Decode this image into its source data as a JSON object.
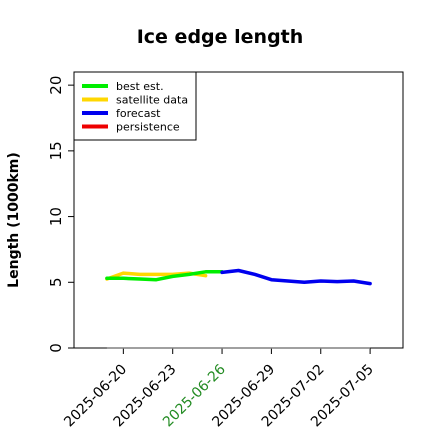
{
  "chart_data": {
    "type": "line",
    "title": "Ice edge length",
    "xlabel": "",
    "ylabel": "Length (1000km)",
    "ylim": [
      0,
      21
    ],
    "xlim": [
      "2025-06-17",
      "2025-07-07"
    ],
    "yticks": [
      0,
      5,
      10,
      15,
      20
    ],
    "xticks": [
      "2025-06-20",
      "2025-06-23",
      "2025-06-26",
      "2025-06-29",
      "2025-07-02",
      "2025-07-05"
    ],
    "highlighted_xtick": "2025-06-26",
    "highlight_color": "#228b22",
    "legend_position": "top-left",
    "grid": false,
    "series": [
      {
        "name": "best est.",
        "color": "#00ee00",
        "x": [
          "2025-06-19",
          "2025-06-20",
          "2025-06-21",
          "2025-06-22",
          "2025-06-23",
          "2025-06-24",
          "2025-06-25",
          "2025-06-26"
        ],
        "y": [
          5.3,
          5.3,
          5.25,
          5.2,
          5.45,
          5.6,
          5.8,
          5.8
        ]
      },
      {
        "name": "satellite data",
        "color": "#ffd700",
        "x": [
          "2025-06-19",
          "2025-06-20",
          "2025-06-21",
          "2025-06-22",
          "2025-06-23",
          "2025-06-24",
          "2025-06-25"
        ],
        "y": [
          5.25,
          5.7,
          5.6,
          5.6,
          5.6,
          5.7,
          5.5
        ]
      },
      {
        "name": "forecast",
        "color": "#0000ee",
        "x": [
          "2025-06-26",
          "2025-06-27",
          "2025-06-28",
          "2025-06-29",
          "2025-06-30",
          "2025-07-01",
          "2025-07-02",
          "2025-07-03",
          "2025-07-04",
          "2025-07-05"
        ],
        "y": [
          5.75,
          5.9,
          5.6,
          5.2,
          5.1,
          5.0,
          5.1,
          5.05,
          5.1,
          4.9
        ]
      },
      {
        "name": "persistence",
        "color": "#ee0000",
        "x": [],
        "y": []
      }
    ],
    "baseline": {
      "color": "#808080",
      "x": [
        "2025-06-19",
        "2025-07-05"
      ],
      "y": [
        0,
        0
      ]
    }
  }
}
